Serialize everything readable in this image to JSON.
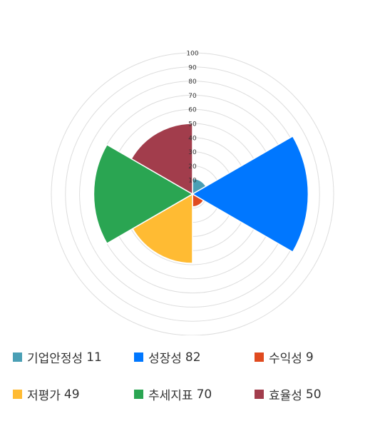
{
  "chart_data": {
    "type": "polar-area",
    "rmax": 100,
    "ticks": [
      10,
      20,
      30,
      40,
      50,
      60,
      70,
      80,
      90,
      100
    ],
    "tick_labels": [
      "10",
      "20",
      "30",
      "40",
      "50",
      "60",
      "70",
      "80",
      "90",
      "100"
    ],
    "grid": true,
    "legend_position": "bottom",
    "categories": [
      "기업안정성",
      "성장성",
      "수익성",
      "저평가",
      "추세지표",
      "효율성"
    ],
    "values": [
      11,
      82,
      9,
      49,
      70,
      50
    ],
    "colors": [
      "#4a9fb5",
      "#0077ff",
      "#e04a1f",
      "#ffbb33",
      "#2aa552",
      "#a23d4c"
    ]
  }
}
